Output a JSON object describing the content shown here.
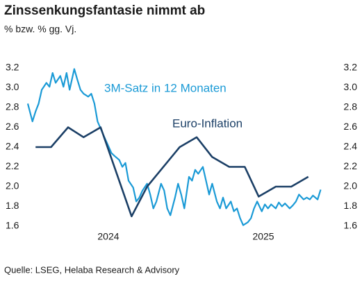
{
  "chart_data": {
    "type": "line",
    "title": "Zinssenkungsfantasie nimmt ab",
    "subtitle": "% bzw. % gg. Vj.",
    "source": "Quelle: LSEG, Helaba Research & Advisory",
    "xlim": [
      2023.48,
      2025.39
    ],
    "xticks": [
      2024,
      2025
    ],
    "ylim": [
      1.6,
      3.2
    ],
    "yticks": [
      {
        "value": 1.6,
        "label": "1.6"
      },
      {
        "value": 1.8,
        "label": "1.8"
      },
      {
        "value": 2.0,
        "label": "2.0"
      },
      {
        "value": 2.2,
        "label": "2.2"
      },
      {
        "value": 2.4,
        "label": "2.4"
      },
      {
        "value": 2.6,
        "label": "2.6"
      },
      {
        "value": 2.8,
        "label": "2.8"
      },
      {
        "value": 3.0,
        "label": "3.0"
      },
      {
        "value": 3.2,
        "label": "3.2"
      }
    ],
    "y2lim": [
      1.6,
      3.2
    ],
    "y2ticks": [
      {
        "value": 1.6,
        "label": "1.6"
      },
      {
        "value": 1.8,
        "label": "1.8"
      },
      {
        "value": 2.0,
        "label": "2.0"
      },
      {
        "value": 2.2,
        "label": "2.2"
      },
      {
        "value": 2.4,
        "label": "2.4"
      },
      {
        "value": 2.6,
        "label": "2.6"
      },
      {
        "value": 2.8,
        "label": "2.8"
      },
      {
        "value": 3.0,
        "label": "3.0"
      },
      {
        "value": 3.2,
        "label": "3.2"
      }
    ],
    "series": [
      {
        "name": "3M-Satz in 12 Monaten",
        "color": "#1a9ad6",
        "x": [
          2023.48,
          2023.51,
          2023.53,
          2023.55,
          2023.57,
          2023.6,
          2023.62,
          2023.64,
          2023.66,
          2023.69,
          2023.71,
          2023.73,
          2023.75,
          2023.78,
          2023.8,
          2023.82,
          2023.84,
          2023.87,
          2023.89,
          2023.91,
          2023.93,
          2023.96,
          2023.98,
          2024.0,
          2024.02,
          2024.04,
          2024.07,
          2024.09,
          2024.11,
          2024.13,
          2024.16,
          2024.18,
          2024.2,
          2024.22,
          2024.25,
          2024.27,
          2024.29,
          2024.31,
          2024.34,
          2024.36,
          2024.38,
          2024.4,
          2024.43,
          2024.45,
          2024.47,
          2024.49,
          2024.52,
          2024.54,
          2024.56,
          2024.58,
          2024.61,
          2024.63,
          2024.65,
          2024.67,
          2024.7,
          2024.72,
          2024.74,
          2024.76,
          2024.79,
          2024.81,
          2024.83,
          2024.85,
          2024.87,
          2024.9,
          2024.92,
          2024.94,
          2024.96,
          2024.99,
          2025.01,
          2025.03,
          2025.05,
          2025.08,
          2025.1,
          2025.12,
          2025.14,
          2025.17,
          2025.19,
          2025.21,
          2025.23,
          2025.26,
          2025.28,
          2025.3,
          2025.32,
          2025.35,
          2025.37
        ],
        "values": [
          2.84,
          2.66,
          2.76,
          2.84,
          2.98,
          3.05,
          3.01,
          3.15,
          3.05,
          3.12,
          3.01,
          3.15,
          2.98,
          3.19,
          3.08,
          2.98,
          2.94,
          2.91,
          2.94,
          2.84,
          2.66,
          2.55,
          2.48,
          2.41,
          2.34,
          2.31,
          2.27,
          2.2,
          2.24,
          2.06,
          1.99,
          1.85,
          1.89,
          1.96,
          2.03,
          1.92,
          1.78,
          1.85,
          2.03,
          1.96,
          1.78,
          1.71,
          1.89,
          2.03,
          1.92,
          1.78,
          2.1,
          2.06,
          2.17,
          2.13,
          2.2,
          2.06,
          1.92,
          2.03,
          1.85,
          1.78,
          1.89,
          1.78,
          1.85,
          1.75,
          1.78,
          1.68,
          1.61,
          1.64,
          1.68,
          1.78,
          1.85,
          1.75,
          1.82,
          1.78,
          1.82,
          1.78,
          1.84,
          1.8,
          1.83,
          1.78,
          1.81,
          1.85,
          1.92,
          1.87,
          1.89,
          1.87,
          1.91,
          1.87,
          1.97
        ]
      },
      {
        "name": "Euro-Inflation",
        "color": "#1b3f66",
        "x": [
          2023.53,
          2023.63,
          2023.74,
          2023.84,
          2023.95,
          2024.15,
          2024.25,
          2024.46,
          2024.57,
          2024.67,
          2024.78,
          2024.88,
          2024.97,
          2025.08,
          2025.18,
          2025.29
        ],
        "values": [
          2.4,
          2.4,
          2.6,
          2.5,
          2.6,
          1.7,
          2.0,
          2.4,
          2.5,
          2.3,
          2.2,
          2.2,
          1.9,
          2.0,
          2.0,
          2.1
        ]
      }
    ]
  }
}
